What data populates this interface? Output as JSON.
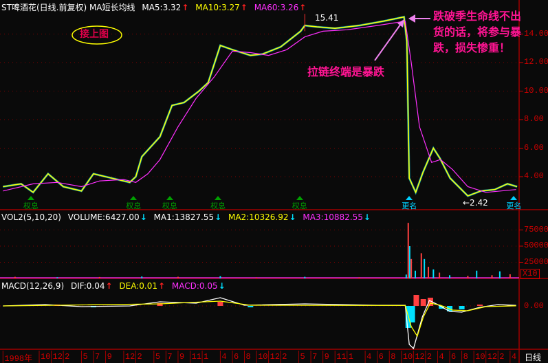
{
  "header": {
    "title": "ST啤酒花(日线.前复权) MA短长均线",
    "ma5": "MA5:3.32",
    "ma10": "MA10:3.27",
    "ma60": "MA60:3.26",
    "up_arrow": "↑",
    "down_arrow": "↓"
  },
  "volume_header": {
    "title": "VOL2(5,10,20)",
    "volume": "VOLUME:6427.00",
    "ma1": "MA1:13827.55",
    "ma2": "MA2:10326.92",
    "ma3": "MA3:10882.55"
  },
  "macd_header": {
    "title": "MACD(12,26,9)",
    "dif": "DIF:0.04",
    "dea": "DEA:0.01",
    "macd": "MACD:0.05"
  },
  "annotations": {
    "continued": "接上图",
    "warning_lines": [
      "跌破季生命线不出",
      "货的话，将参与暴",
      "跌，损失惨重！"
    ],
    "zipper_end": "拉链终端是暴跌",
    "high_label": "15.41",
    "low_label": "←2.42"
  },
  "markers": [
    {
      "label": "权息",
      "date": "1998-08-20",
      "color": "#00a000"
    },
    {
      "label": "权息",
      "date": "2000-01-20",
      "color": "#00a000"
    },
    {
      "label": "权息",
      "date": "2000-07-20",
      "color": "#00a000"
    },
    {
      "label": "权息",
      "date": "2001-03-20",
      "color": "#00a000"
    },
    {
      "label": "权息",
      "date": "2002-05-05",
      "color": "#00a000"
    },
    {
      "label": "更名",
      "date": "2003-11-10",
      "color": "#00d0ff"
    },
    {
      "label": "更名",
      "date": "2005-04-20",
      "color": "#00d0ff"
    }
  ],
  "price_axis": [
    "14.00",
    "12.00",
    "10.00",
    "8.00",
    "6.00",
    "4.00"
  ],
  "volume_axis": [
    "75000",
    "50000",
    "25000"
  ],
  "volume_unit": "X10",
  "macd_axis": "0.00",
  "period_label": "日线",
  "time_axis": [
    {
      "label": "1998年",
      "date": "1998-04"
    },
    {
      "label": "10",
      "date": "1998-10"
    },
    {
      "label": "12",
      "date": "1998-12"
    },
    {
      "label": "2",
      "date": "1999-02"
    },
    {
      "label": "5",
      "date": "1999-05"
    },
    {
      "label": "7",
      "date": "1999-07"
    },
    {
      "label": "9",
      "date": "1999-09"
    },
    {
      "label": "12",
      "date": "1999-12"
    },
    {
      "label": "2",
      "date": "2000-02"
    },
    {
      "label": "5",
      "date": "2000-05"
    },
    {
      "label": "7",
      "date": "2000-07"
    },
    {
      "label": "9",
      "date": "2000-09"
    },
    {
      "label": "11",
      "date": "2000-11"
    },
    {
      "label": "1",
      "date": "2001-01"
    },
    {
      "label": "4",
      "date": "2001-04"
    },
    {
      "label": "6",
      "date": "2001-06"
    },
    {
      "label": "8",
      "date": "2001-08"
    },
    {
      "label": "10",
      "date": "2001-10"
    },
    {
      "label": "12",
      "date": "2001-12"
    },
    {
      "label": "2",
      "date": "2002-02"
    },
    {
      "label": "5",
      "date": "2002-05"
    },
    {
      "label": "7",
      "date": "2002-07"
    },
    {
      "label": "9",
      "date": "2002-09"
    },
    {
      "label": "11",
      "date": "2002-11"
    },
    {
      "label": "1",
      "date": "2003-01"
    },
    {
      "label": "4",
      "date": "2003-04"
    },
    {
      "label": "6",
      "date": "2003-06"
    },
    {
      "label": "8",
      "date": "2003-08"
    },
    {
      "label": "10",
      "date": "2003-10"
    },
    {
      "label": "12",
      "date": "2003-12"
    },
    {
      "label": "2",
      "date": "2004-02"
    },
    {
      "label": "4",
      "date": "2004-04"
    },
    {
      "label": "6",
      "date": "2004-06"
    },
    {
      "label": "8",
      "date": "2004-08"
    },
    {
      "label": "10",
      "date": "2004-10"
    },
    {
      "label": "12",
      "date": "2004-12"
    },
    {
      "label": "2",
      "date": "2005-02"
    },
    {
      "label": "4",
      "date": "2005-04"
    }
  ],
  "colors": {
    "close": "#ffff00",
    "ma60": "#ff30ff",
    "axis": "#d00000",
    "annotation": "#ff1493",
    "volume_up": "#ff4040",
    "volume_down": "#00e0ff",
    "dif": "#ffffff",
    "dea": "#ffff00"
  },
  "chart_data": [
    {
      "type": "line",
      "title": "ST啤酒花(日线.前复权)",
      "ylim": [
        2.0,
        16.0
      ],
      "series": [
        {
          "name": "MA5",
          "points": [
            [
              "1998-04-01",
              3.3
            ],
            [
              "1998-07-01",
              3.5
            ],
            [
              "1998-09-01",
              2.9
            ],
            [
              "1998-11-15",
              4.2
            ],
            [
              "1999-02-01",
              3.3
            ],
            [
              "1999-05-01",
              3.0
            ],
            [
              "1999-07-01",
              4.2
            ],
            [
              "1999-10-01",
              3.9
            ],
            [
              "2000-01-01",
              3.6
            ],
            [
              "2000-02-01",
              4.0
            ],
            [
              "2000-03-01",
              5.4
            ],
            [
              "2000-06-01",
              6.8
            ],
            [
              "2000-08-01",
              9.0
            ],
            [
              "2000-10-01",
              9.2
            ],
            [
              "2000-12-15",
              10.0
            ],
            [
              "2001-02-01",
              10.6
            ],
            [
              "2001-04-01",
              13.2
            ],
            [
              "2001-06-01",
              12.9
            ],
            [
              "2001-09-01",
              12.5
            ],
            [
              "2001-11-01",
              12.6
            ],
            [
              "2002-02-01",
              13.1
            ],
            [
              "2002-05-10",
              14.2
            ],
            [
              "2002-06-01",
              14.6
            ],
            [
              "2002-08-01",
              14.5
            ],
            [
              "2002-11-01",
              14.4
            ],
            [
              "2003-03-01",
              14.6
            ],
            [
              "2003-07-01",
              14.9
            ],
            [
              "2003-10-14",
              15.2
            ],
            [
              "2003-10-28",
              13.5
            ],
            [
              "2003-11-10",
              3.9
            ],
            [
              "2003-12-12",
              2.9
            ],
            [
              "2004-01-18",
              4.3
            ],
            [
              "2004-03-10",
              6.0
            ],
            [
              "2004-04-12",
              5.3
            ],
            [
              "2004-06-03",
              3.9
            ],
            [
              "2004-09-01",
              2.65
            ],
            [
              "2004-11-06",
              3.0
            ],
            [
              "2005-01-15",
              3.1
            ],
            [
              "2005-03-18",
              3.5
            ],
            [
              "2005-05-06",
              3.3
            ]
          ]
        },
        {
          "name": "MA60",
          "points": [
            [
              "1998-04-01",
              3.0
            ],
            [
              "1998-09-01",
              3.5
            ],
            [
              "1999-01-01",
              3.6
            ],
            [
              "1999-05-01",
              3.3
            ],
            [
              "1999-08-01",
              3.7
            ],
            [
              "1999-12-01",
              3.8
            ],
            [
              "2000-02-01",
              3.6
            ],
            [
              "2000-04-01",
              4.2
            ],
            [
              "2000-06-01",
              5.2
            ],
            [
              "2000-09-01",
              7.5
            ],
            [
              "2000-12-01",
              9.5
            ],
            [
              "2001-03-01",
              11.0
            ],
            [
              "2001-06-01",
              12.8
            ],
            [
              "2001-09-01",
              12.7
            ],
            [
              "2001-12-01",
              12.5
            ],
            [
              "2002-03-01",
              12.9
            ],
            [
              "2002-06-01",
              13.8
            ],
            [
              "2002-09-01",
              14.2
            ],
            [
              "2003-01-01",
              14.3
            ],
            [
              "2003-06-01",
              14.6
            ],
            [
              "2003-10-20",
              14.9
            ],
            [
              "2003-11-20",
              12.0
            ],
            [
              "2004-01-01",
              7.5
            ],
            [
              "2004-03-01",
              5.0
            ],
            [
              "2004-04-15",
              5.2
            ],
            [
              "2004-06-15",
              4.5
            ],
            [
              "2004-09-01",
              3.3
            ],
            [
              "2004-12-01",
              2.9
            ],
            [
              "2005-05-01",
              3.1
            ]
          ]
        }
      ],
      "high": {
        "date": "2002-06-01",
        "value": 15.41
      },
      "low": {
        "date": "2004-09-01",
        "value": 2.42
      }
    },
    {
      "type": "bar",
      "title": "VOL2(5,10,20)",
      "ylim": [
        0,
        90000
      ],
      "bars": [
        [
          "1998-06-01",
          2500
        ],
        [
          "1999-01-01",
          1800
        ],
        [
          "1999-08-01",
          2200
        ],
        [
          "2000-03-01",
          3000
        ],
        [
          "2000-09-01",
          2600
        ],
        [
          "2001-04-01",
          3500
        ],
        [
          "2001-10-01",
          1500
        ],
        [
          "2002-06-01",
          2500
        ],
        [
          "2003-03-01",
          1500
        ],
        [
          "2003-10-25",
          6000
        ],
        [
          "2003-11-05",
          86000
        ],
        [
          "2003-11-12",
          50000
        ],
        [
          "2003-11-20",
          30000
        ],
        [
          "2003-12-10",
          12000
        ],
        [
          "2004-01-10",
          39000
        ],
        [
          "2004-01-25",
          30000
        ],
        [
          "2004-02-15",
          18000
        ],
        [
          "2004-03-10",
          14000
        ],
        [
          "2004-04-10",
          9000
        ],
        [
          "2004-06-01",
          5000
        ],
        [
          "2004-09-01",
          4000
        ],
        [
          "2004-10-15",
          12000
        ],
        [
          "2005-01-01",
          5000
        ],
        [
          "2005-02-10",
          11000
        ],
        [
          "2005-04-01",
          6427
        ]
      ]
    },
    {
      "type": "bar",
      "title": "MACD(12,26,9)",
      "ylim": [
        -3.5,
        2
      ],
      "macd": [
        [
          "1999-01-01",
          0.1
        ],
        [
          "1999-07-01",
          -0.1
        ],
        [
          "2000-06-01",
          0.2
        ],
        [
          "2001-04-01",
          0.3
        ],
        [
          "2001-09-01",
          -0.1
        ],
        [
          "2003-11-05",
          -1.6
        ],
        [
          "2003-11-25",
          -1.2
        ],
        [
          "2003-12-15",
          0.8
        ],
        [
          "2004-01-20",
          0.5
        ],
        [
          "2004-02-25",
          0.6
        ],
        [
          "2004-04-20",
          -0.2
        ],
        [
          "2004-06-01",
          -0.4
        ],
        [
          "2004-08-01",
          -0.25
        ],
        [
          "2004-11-01",
          0.1
        ],
        [
          "2005-04-01",
          0.05
        ]
      ],
      "dif": [
        [
          "1998-04-01",
          0.0
        ],
        [
          "1998-11-01",
          0.1
        ],
        [
          "1999-05-01",
          -0.05
        ],
        [
          "2000-01-01",
          0.0
        ],
        [
          "2000-06-01",
          0.3
        ],
        [
          "2000-12-01",
          0.2
        ],
        [
          "2001-04-01",
          0.6
        ],
        [
          "2001-08-01",
          0.05
        ],
        [
          "2002-06-01",
          0.15
        ],
        [
          "2003-06-01",
          0.05
        ],
        [
          "2003-10-20",
          0.05
        ],
        [
          "2003-11-10",
          -2.8
        ],
        [
          "2003-12-01",
          -3.1
        ],
        [
          "2004-01-15",
          -0.8
        ],
        [
          "2004-02-20",
          0.4
        ],
        [
          "2004-04-01",
          0.1
        ],
        [
          "2004-06-01",
          -0.4
        ],
        [
          "2004-08-01",
          -0.45
        ],
        [
          "2004-11-01",
          -0.1
        ],
        [
          "2005-02-01",
          0.1
        ],
        [
          "2005-05-01",
          0.04
        ]
      ],
      "dea": [
        [
          "1998-04-01",
          0.0
        ],
        [
          "1999-01-01",
          0.05
        ],
        [
          "2000-06-01",
          0.15
        ],
        [
          "2001-04-01",
          0.35
        ],
        [
          "2001-09-01",
          0.05
        ],
        [
          "2003-10-20",
          0.03
        ],
        [
          "2003-11-20",
          -1.5
        ],
        [
          "2003-12-20",
          -2.2
        ],
        [
          "2004-01-20",
          -0.8
        ],
        [
          "2004-02-25",
          0.2
        ],
        [
          "2004-04-15",
          0.05
        ],
        [
          "2004-06-15",
          -0.3
        ],
        [
          "2004-09-01",
          -0.35
        ],
        [
          "2004-12-01",
          -0.05
        ],
        [
          "2005-05-01",
          0.01
        ]
      ]
    }
  ]
}
